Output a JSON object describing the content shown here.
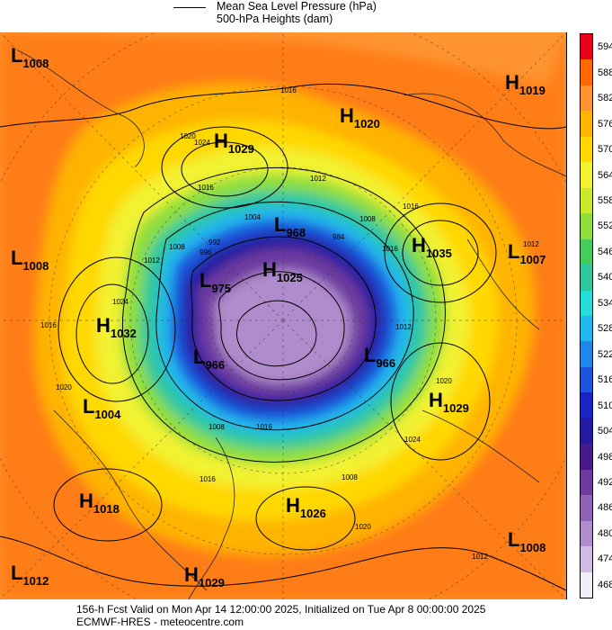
{
  "header": {
    "legend_line_1": "Mean Sea Level Pressure (hPa)",
    "legend_line_2": "500-hPa Heights (dam)"
  },
  "footer": {
    "line_1": "156-h Fcst Valid on Mon Apr 14 12:00:00 2025, Initialized on Tue Apr  8 00:00:00 2025",
    "line_2": "ECMWF-HRES  - meteocentre.com"
  },
  "colorbar": {
    "ticks": [
      "594",
      "588",
      "582",
      "576",
      "570",
      "564",
      "558",
      "552",
      "546",
      "540",
      "534",
      "528",
      "522",
      "516",
      "510",
      "504",
      "498",
      "492",
      "486",
      "480",
      "474",
      "468"
    ],
    "colors": [
      "#e8001a",
      "#ff6a00",
      "#ff9430",
      "#ffb400",
      "#ffd800",
      "#f2f230",
      "#c8ea2a",
      "#8ede3c",
      "#46cc5a",
      "#2ec8a0",
      "#24dcd8",
      "#20b8ee",
      "#1f86ea",
      "#1d55dc",
      "#1a24c4",
      "#241aa0",
      "#4a1a8c",
      "#6e3aa0",
      "#8e62b4",
      "#b08ccc",
      "#d0bce2",
      "#f2eef8"
    ]
  },
  "map": {
    "systems": [
      {
        "type": "L",
        "value": "1008"
      },
      {
        "type": "H",
        "value": "1019"
      },
      {
        "type": "H",
        "value": "1020"
      },
      {
        "type": "H",
        "value": "1029"
      },
      {
        "type": "L",
        "value": "968"
      },
      {
        "type": "H",
        "value": "1035"
      },
      {
        "type": "L",
        "value": "1007"
      },
      {
        "type": "L",
        "value": "1008"
      },
      {
        "type": "L",
        "value": "975"
      },
      {
        "type": "H",
        "value": "1025"
      },
      {
        "type": "H",
        "value": "1032"
      },
      {
        "type": "L",
        "value": "966"
      },
      {
        "type": "L",
        "value": "966"
      },
      {
        "type": "H",
        "value": "1029"
      },
      {
        "type": "L",
        "value": "1004"
      },
      {
        "type": "H",
        "value": "1018"
      },
      {
        "type": "H",
        "value": "1026"
      },
      {
        "type": "L",
        "value": "1008"
      },
      {
        "type": "L",
        "value": "1012"
      },
      {
        "type": "H",
        "value": "1029"
      }
    ],
    "isobar_labels": [
      "1016",
      "1020",
      "1024",
      "1016",
      "1012",
      "1016",
      "1008",
      "1004",
      "1008",
      "996",
      "992",
      "984",
      "1020",
      "1016",
      "1012",
      "1024",
      "1008",
      "1016",
      "1020",
      "1016",
      "1012",
      "1008",
      "1016",
      "1012",
      "1020",
      "1024",
      "1012"
    ]
  }
}
